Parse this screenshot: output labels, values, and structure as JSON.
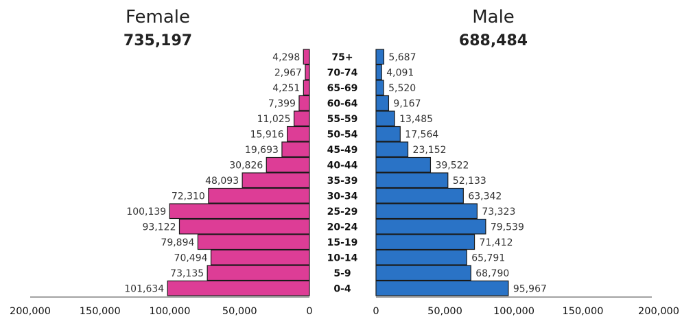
{
  "chart_data": {
    "type": "bar",
    "orientation": "horizontal",
    "categories": [
      "75+",
      "70-74",
      "65-69",
      "60-64",
      "55-59",
      "50-54",
      "45-49",
      "40-44",
      "35-39",
      "30-34",
      "25-29",
      "20-24",
      "15-19",
      "10-14",
      "5-9",
      "0-4"
    ],
    "series": [
      {
        "name": "Female",
        "total": "735,197",
        "color": "#dd3d96",
        "values": [
          4298,
          2967,
          4251,
          7399,
          11025,
          15916,
          19693,
          30826,
          48093,
          72310,
          100139,
          93122,
          79894,
          70494,
          73135,
          101634
        ],
        "labels": [
          "4,298",
          "2,967",
          "4,251",
          "7,399",
          "11,025",
          "15,916",
          "19,693",
          "30,826",
          "48,093",
          "72,310",
          "100,139",
          "93,122",
          "79,894",
          "70,494",
          "73,135",
          "101,634"
        ]
      },
      {
        "name": "Male",
        "total": "688,484",
        "color": "#2a73c6",
        "values": [
          5687,
          4091,
          5520,
          9167,
          13485,
          17564,
          23152,
          39522,
          52133,
          63342,
          73323,
          79539,
          71412,
          65791,
          68790,
          95967
        ],
        "labels": [
          "5,687",
          "4,091",
          "5,520",
          "9,167",
          "13,485",
          "17,564",
          "23,152",
          "39,522",
          "52,133",
          "63,342",
          "73,323",
          "79,539",
          "71,412",
          "65,791",
          "68,790",
          "95,967"
        ]
      }
    ],
    "xlim": [
      0,
      200000
    ],
    "female_ticks": [
      "200,000",
      "150,000",
      "100,000",
      "50,000",
      "0"
    ],
    "male_ticks": [
      "0",
      "50,000",
      "100,000",
      "150,000",
      "200,000"
    ],
    "grid": false,
    "legend": "none"
  }
}
